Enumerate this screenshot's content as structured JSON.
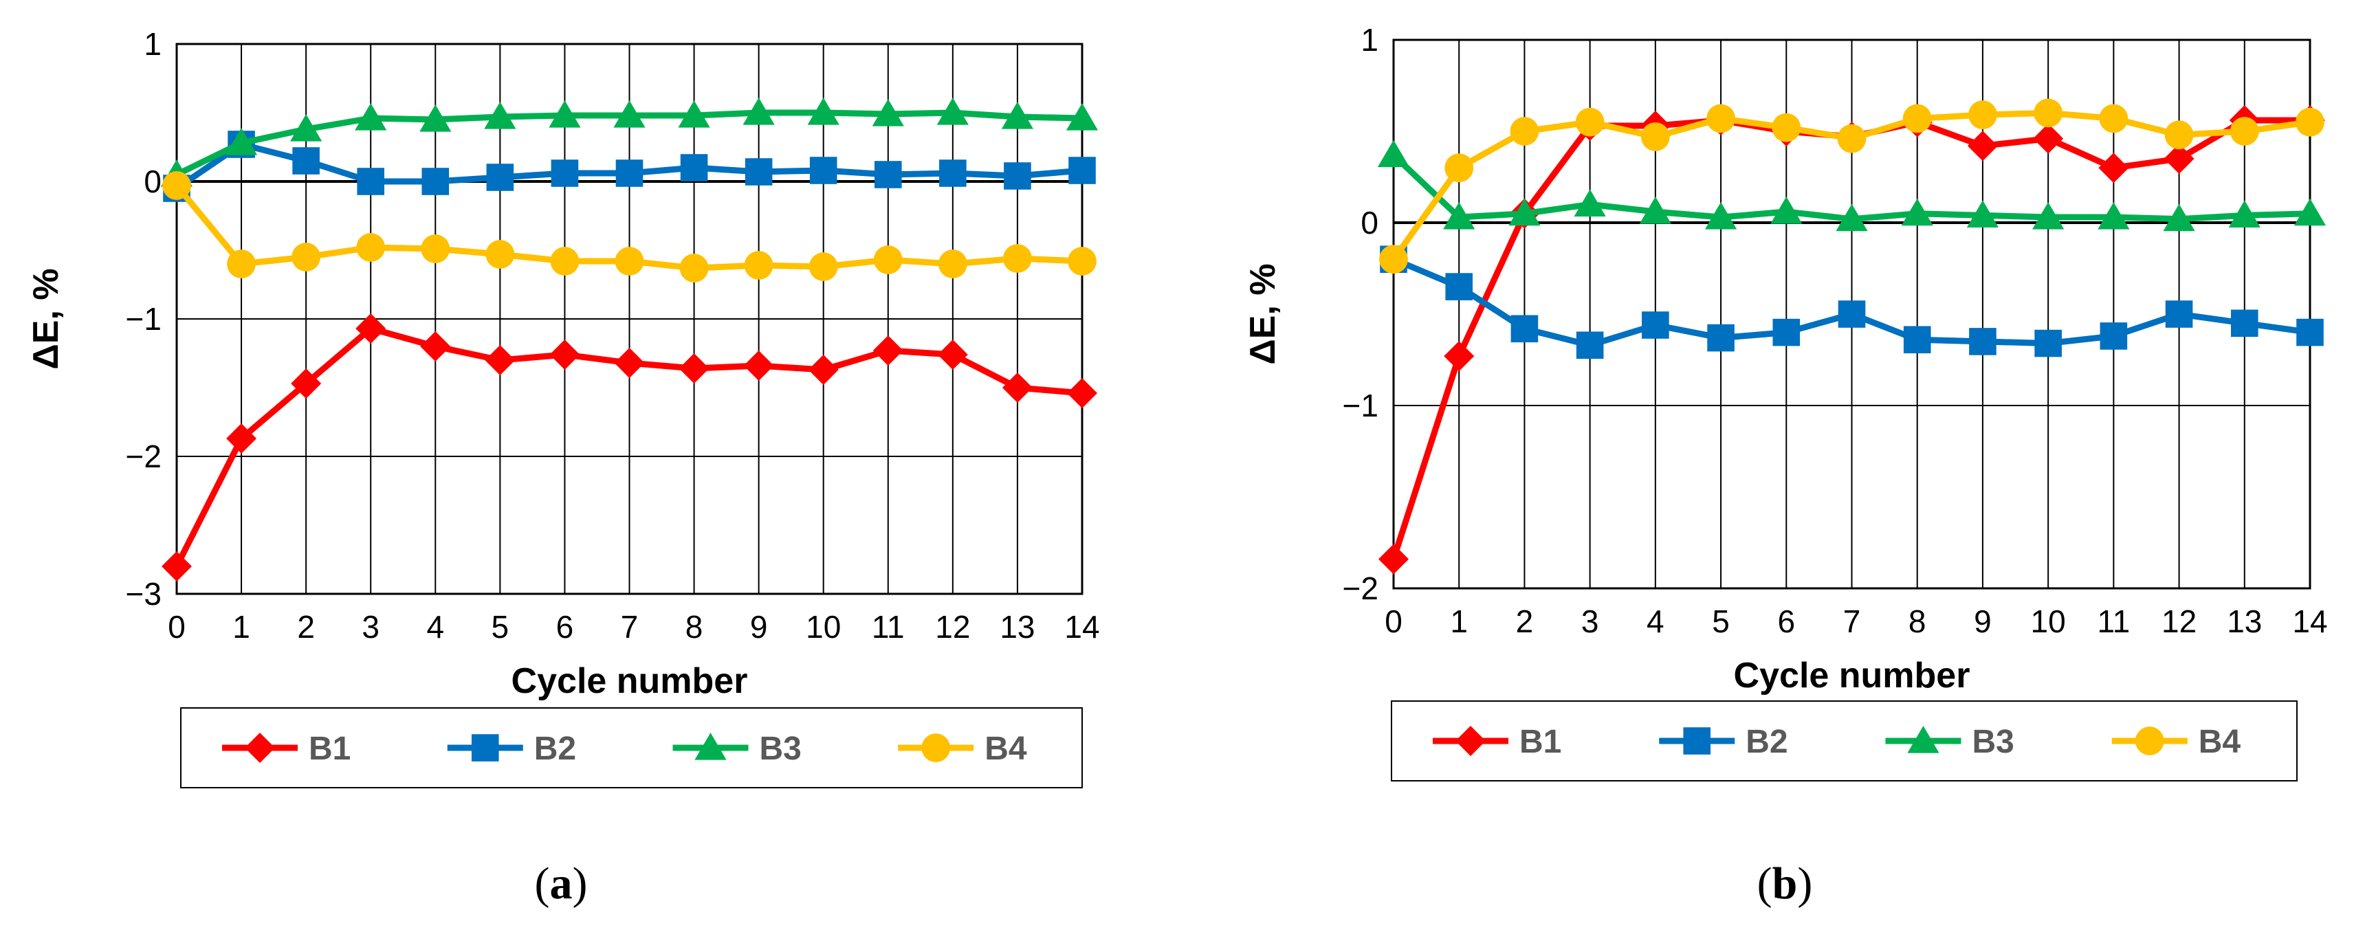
{
  "chart_data": [
    {
      "panel_label": "a",
      "type": "line",
      "xlabel": "Cycle number",
      "ylabel": "ΔE, %",
      "xlim": [
        0,
        14
      ],
      "ylim": [
        -3,
        1
      ],
      "x_ticks": [
        "0",
        "1",
        "2",
        "3",
        "4",
        "5",
        "6",
        "7",
        "8",
        "9",
        "10",
        "11",
        "12",
        "13",
        "14"
      ],
      "y_ticks": [
        {
          "value": 1,
          "label": "1"
        },
        {
          "value": 0,
          "label": "0"
        },
        {
          "value": -1,
          "label": "−1"
        },
        {
          "value": -2,
          "label": "−2"
        },
        {
          "value": -3,
          "label": "−3"
        }
      ],
      "grid": true,
      "legend_position": "bottom",
      "x": [
        0,
        1,
        2,
        3,
        4,
        5,
        6,
        7,
        8,
        9,
        10,
        11,
        12,
        13,
        14
      ],
      "series": [
        {
          "name": "B1",
          "color": "#ff0000",
          "marker": "diamond",
          "values": [
            -2.8,
            -1.87,
            -1.47,
            -1.07,
            -1.2,
            -1.3,
            -1.26,
            -1.32,
            -1.36,
            -1.34,
            -1.37,
            -1.23,
            -1.26,
            -1.5,
            -1.54
          ]
        },
        {
          "name": "B2",
          "color": "#0070c0",
          "marker": "square",
          "values": [
            -0.05,
            0.27,
            0.15,
            0.0,
            0.0,
            0.03,
            0.06,
            0.06,
            0.1,
            0.07,
            0.08,
            0.05,
            0.06,
            0.04,
            0.08
          ]
        },
        {
          "name": "B3",
          "color": "#00b050",
          "marker": "triangle",
          "values": [
            0.05,
            0.28,
            0.38,
            0.46,
            0.45,
            0.47,
            0.48,
            0.48,
            0.48,
            0.5,
            0.5,
            0.49,
            0.5,
            0.47,
            0.46
          ]
        },
        {
          "name": "B4",
          "color": "#ffc000",
          "marker": "circle",
          "values": [
            -0.03,
            -0.6,
            -0.55,
            -0.48,
            -0.49,
            -0.53,
            -0.58,
            -0.58,
            -0.63,
            -0.61,
            -0.62,
            -0.57,
            -0.6,
            -0.56,
            -0.58
          ]
        }
      ]
    },
    {
      "panel_label": "b",
      "type": "line",
      "xlabel": "Cycle number",
      "ylabel": "ΔE, %",
      "xlim": [
        0,
        14
      ],
      "ylim": [
        -2,
        1
      ],
      "x_ticks": [
        "0",
        "1",
        "2",
        "3",
        "4",
        "5",
        "6",
        "7",
        "8",
        "9",
        "10",
        "11",
        "12",
        "13",
        "14"
      ],
      "y_ticks": [
        {
          "value": 1,
          "label": "1"
        },
        {
          "value": 0,
          "label": "0"
        },
        {
          "value": -1,
          "label": "−1"
        },
        {
          "value": -2,
          "label": "−2"
        }
      ],
      "grid": true,
      "legend_position": "bottom",
      "x": [
        0,
        1,
        2,
        3,
        4,
        5,
        6,
        7,
        8,
        9,
        10,
        11,
        12,
        13,
        14
      ],
      "series": [
        {
          "name": "B1",
          "color": "#ff0000",
          "marker": "diamond",
          "values": [
            -1.84,
            -0.73,
            0.05,
            0.53,
            0.53,
            0.56,
            0.5,
            0.47,
            0.55,
            0.42,
            0.46,
            0.3,
            0.35,
            0.56,
            0.56
          ]
        },
        {
          "name": "B2",
          "color": "#0070c0",
          "marker": "square",
          "values": [
            -0.2,
            -0.35,
            -0.58,
            -0.67,
            -0.56,
            -0.63,
            -0.6,
            -0.5,
            -0.64,
            -0.65,
            -0.66,
            -0.62,
            -0.5,
            -0.55,
            -0.6
          ]
        },
        {
          "name": "B3",
          "color": "#00b050",
          "marker": "triangle",
          "values": [
            0.37,
            0.03,
            0.05,
            0.1,
            0.06,
            0.03,
            0.06,
            0.02,
            0.05,
            0.04,
            0.03,
            0.03,
            0.02,
            0.04,
            0.05
          ]
        },
        {
          "name": "B4",
          "color": "#ffc000",
          "marker": "circle",
          "values": [
            -0.2,
            0.3,
            0.5,
            0.55,
            0.47,
            0.57,
            0.52,
            0.46,
            0.57,
            0.59,
            0.6,
            0.57,
            0.48,
            0.5,
            0.55
          ]
        }
      ]
    }
  ],
  "captions": [
    "a",
    "b"
  ]
}
